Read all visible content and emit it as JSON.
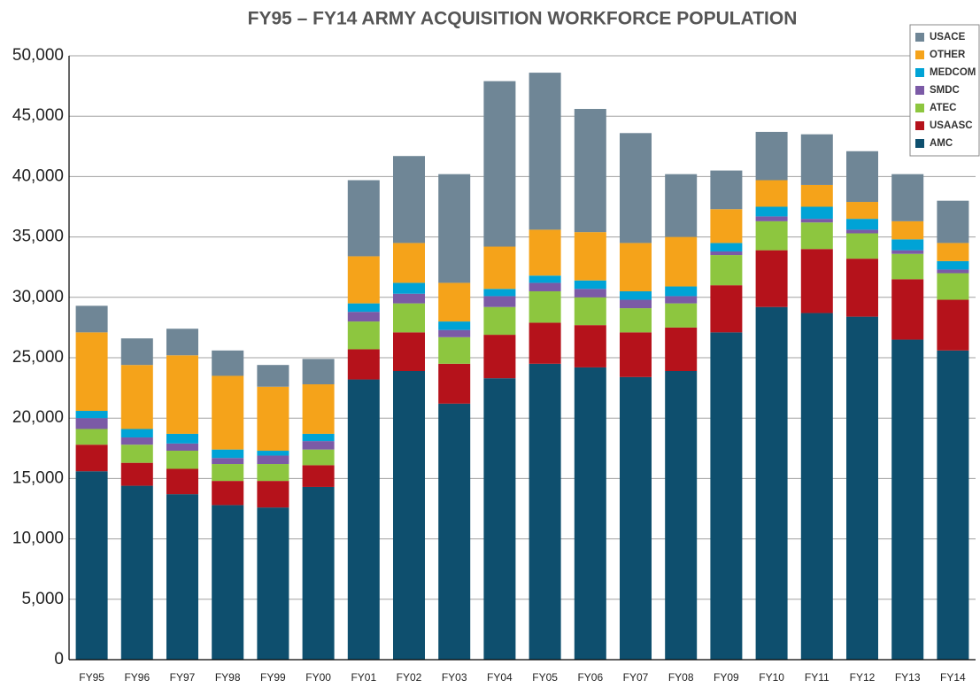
{
  "chart_data": {
    "type": "stacked_bar",
    "title": "FY95 – FY14 ARMY ACQUISITION WORKFORCE POPULATION",
    "categories": [
      "FY95",
      "FY96",
      "FY97",
      "FY98",
      "FY99",
      "FY00",
      "FY01",
      "FY02",
      "FY03",
      "FY04",
      "FY05",
      "FY06",
      "FY07",
      "FY08",
      "FY09",
      "FY10",
      "FY11",
      "FY12",
      "FY13",
      "FY14"
    ],
    "series": [
      {
        "name": "AMC",
        "color": "#0e4f6e",
        "values": [
          15600,
          14400,
          13700,
          12800,
          12600,
          14300,
          23200,
          23900,
          21200,
          23300,
          24500,
          24200,
          23400,
          23900,
          27100,
          29200,
          28700,
          28400,
          26500,
          25600
        ]
      },
      {
        "name": "USAASC",
        "color": "#b5121b",
        "values": [
          2200,
          1900,
          2100,
          2000,
          2200,
          1800,
          2500,
          3200,
          3300,
          3600,
          3400,
          3500,
          3700,
          3600,
          3900,
          4700,
          5300,
          4800,
          5000,
          4200
        ]
      },
      {
        "name": "ATEC",
        "color": "#8dc63f",
        "values": [
          1300,
          1500,
          1500,
          1400,
          1400,
          1300,
          2300,
          2400,
          2200,
          2300,
          2600,
          2300,
          2000,
          2000,
          2500,
          2400,
          2200,
          2100,
          2100,
          2200
        ]
      },
      {
        "name": "SMDC",
        "color": "#7b5aa6",
        "values": [
          900,
          600,
          600,
          500,
          700,
          700,
          800,
          800,
          600,
          900,
          700,
          700,
          700,
          600,
          300,
          400,
          300,
          300,
          300,
          300
        ]
      },
      {
        "name": "MEDCOM",
        "color": "#00a3d6",
        "values": [
          600,
          700,
          800,
          700,
          400,
          600,
          700,
          900,
          700,
          600,
          600,
          700,
          700,
          800,
          700,
          800,
          1000,
          900,
          900,
          700
        ]
      },
      {
        "name": "OTHER",
        "color": "#f5a31a",
        "values": [
          6500,
          5300,
          6500,
          6100,
          5300,
          4100,
          3900,
          3300,
          3200,
          3500,
          3800,
          4000,
          4000,
          4100,
          2800,
          2200,
          1800,
          1400,
          1500,
          1500
        ]
      },
      {
        "name": "USACE",
        "color": "#6f8696",
        "values": [
          2200,
          2200,
          2200,
          2100,
          1800,
          2100,
          6300,
          7200,
          9000,
          13700,
          13000,
          10200,
          9100,
          5200,
          3200,
          4000,
          4200,
          4200,
          3900,
          3500
        ]
      }
    ],
    "ylim": [
      0,
      50000
    ],
    "yticks": [
      0,
      {
        "value": 5000,
        "label": "5,000"
      },
      {
        "value": 10000,
        "label": "10,000"
      },
      {
        "value": 15000,
        "label": "15,000"
      },
      {
        "value": 20000,
        "label": "20,000"
      },
      {
        "value": 25000,
        "label": "25,000"
      },
      {
        "value": 30000,
        "label": "30,000"
      },
      {
        "value": 35000,
        "label": "35,000"
      },
      {
        "value": 40000,
        "label": "40,000"
      },
      {
        "value": 45000,
        "label": "45,000"
      },
      {
        "value": 50000,
        "label": "50,000"
      }
    ],
    "grid": true,
    "legend": "top-right"
  }
}
